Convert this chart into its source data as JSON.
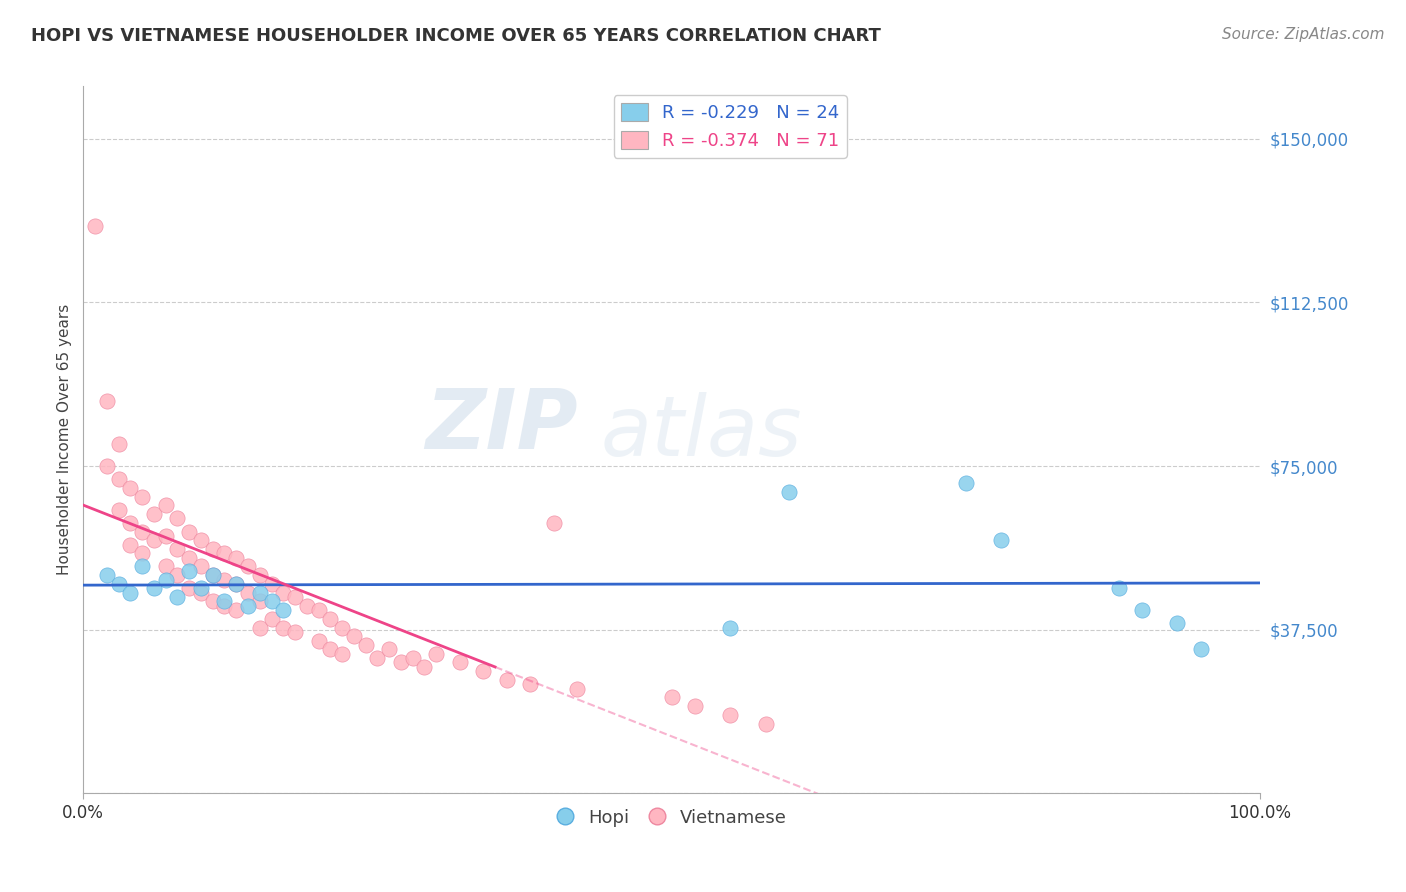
{
  "title": "HOPI VS VIETNAMESE HOUSEHOLDER INCOME OVER 65 YEARS CORRELATION CHART",
  "source": "Source: ZipAtlas.com",
  "ylabel": "Householder Income Over 65 years",
  "xlim": [
    0.0,
    1.0
  ],
  "ylim": [
    0,
    162000
  ],
  "yticks": [
    0,
    37500,
    75000,
    112500,
    150000
  ],
  "ytick_labels": [
    "",
    "$37,500",
    "$75,000",
    "$112,500",
    "$150,000"
  ],
  "xtick_labels": [
    "0.0%",
    "100.0%"
  ],
  "hopi_color": "#87CEEB",
  "hopi_edge_color": "#5aaee0",
  "vietnamese_color": "#FFB6C1",
  "vietnamese_edge_color": "#ee88a0",
  "hopi_line_color": "#3366CC",
  "vietnamese_line_color": "#EE4488",
  "hopi_R": -0.229,
  "hopi_N": 24,
  "vietnamese_R": -0.374,
  "vietnamese_N": 71,
  "background_color": "#ffffff",
  "grid_color": "#cccccc",
  "watermark_zip": "ZIP",
  "watermark_atlas": "atlas",
  "hopi_x": [
    0.02,
    0.03,
    0.04,
    0.05,
    0.06,
    0.07,
    0.08,
    0.09,
    0.1,
    0.11,
    0.12,
    0.13,
    0.14,
    0.15,
    0.16,
    0.17,
    0.55,
    0.6,
    0.75,
    0.78,
    0.88,
    0.9,
    0.93,
    0.95
  ],
  "hopi_y": [
    50000,
    48000,
    46000,
    52000,
    47000,
    49000,
    45000,
    51000,
    47000,
    50000,
    44000,
    48000,
    43000,
    46000,
    44000,
    42000,
    38000,
    69000,
    71000,
    58000,
    47000,
    42000,
    39000,
    33000
  ],
  "vietnamese_x": [
    0.01,
    0.02,
    0.02,
    0.03,
    0.03,
    0.03,
    0.04,
    0.04,
    0.04,
    0.05,
    0.05,
    0.05,
    0.06,
    0.06,
    0.07,
    0.07,
    0.07,
    0.08,
    0.08,
    0.08,
    0.09,
    0.09,
    0.09,
    0.1,
    0.1,
    0.1,
    0.11,
    0.11,
    0.11,
    0.12,
    0.12,
    0.12,
    0.13,
    0.13,
    0.13,
    0.14,
    0.14,
    0.15,
    0.15,
    0.15,
    0.16,
    0.16,
    0.17,
    0.17,
    0.18,
    0.18,
    0.19,
    0.2,
    0.2,
    0.21,
    0.21,
    0.22,
    0.22,
    0.23,
    0.24,
    0.25,
    0.26,
    0.27,
    0.28,
    0.29,
    0.3,
    0.32,
    0.34,
    0.36,
    0.38,
    0.4,
    0.42,
    0.5,
    0.52,
    0.55,
    0.58
  ],
  "vietnamese_y": [
    130000,
    90000,
    75000,
    80000,
    72000,
    65000,
    70000,
    62000,
    57000,
    68000,
    60000,
    55000,
    64000,
    58000,
    66000,
    59000,
    52000,
    63000,
    56000,
    50000,
    60000,
    54000,
    47000,
    58000,
    52000,
    46000,
    56000,
    50000,
    44000,
    55000,
    49000,
    43000,
    54000,
    48000,
    42000,
    52000,
    46000,
    50000,
    44000,
    38000,
    48000,
    40000,
    46000,
    38000,
    45000,
    37000,
    43000,
    42000,
    35000,
    40000,
    33000,
    38000,
    32000,
    36000,
    34000,
    31000,
    33000,
    30000,
    31000,
    29000,
    32000,
    30000,
    28000,
    26000,
    25000,
    62000,
    24000,
    22000,
    20000,
    18000,
    16000
  ]
}
